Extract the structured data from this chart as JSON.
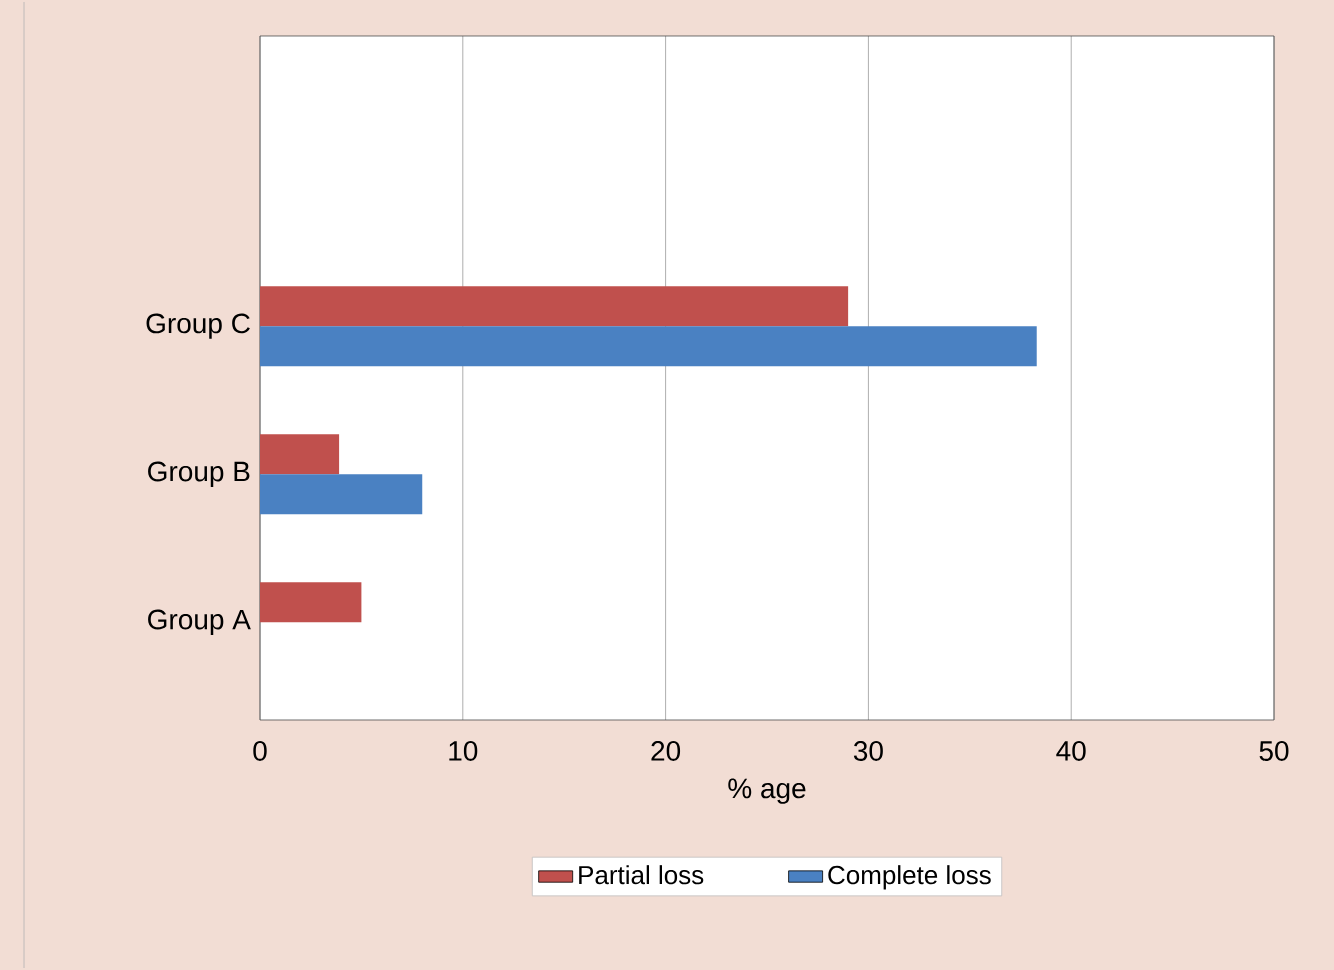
{
  "chart_data": {
    "type": "bar",
    "orientation": "horizontal",
    "xlabel": "% age",
    "categories": [
      "Group C",
      "Group B",
      "Group A"
    ],
    "series": [
      {
        "name": "Partial loss",
        "color": "#c0504d",
        "values": [
          29,
          3.9,
          5.0
        ]
      },
      {
        "name": "Complete loss",
        "color": "#4a81c2",
        "values": [
          38.3,
          8.0,
          0
        ]
      }
    ],
    "xlim": [
      0,
      50
    ],
    "xticks": [
      0,
      10,
      20,
      30,
      40,
      50
    ],
    "grid": "x",
    "legend": "bottom"
  }
}
